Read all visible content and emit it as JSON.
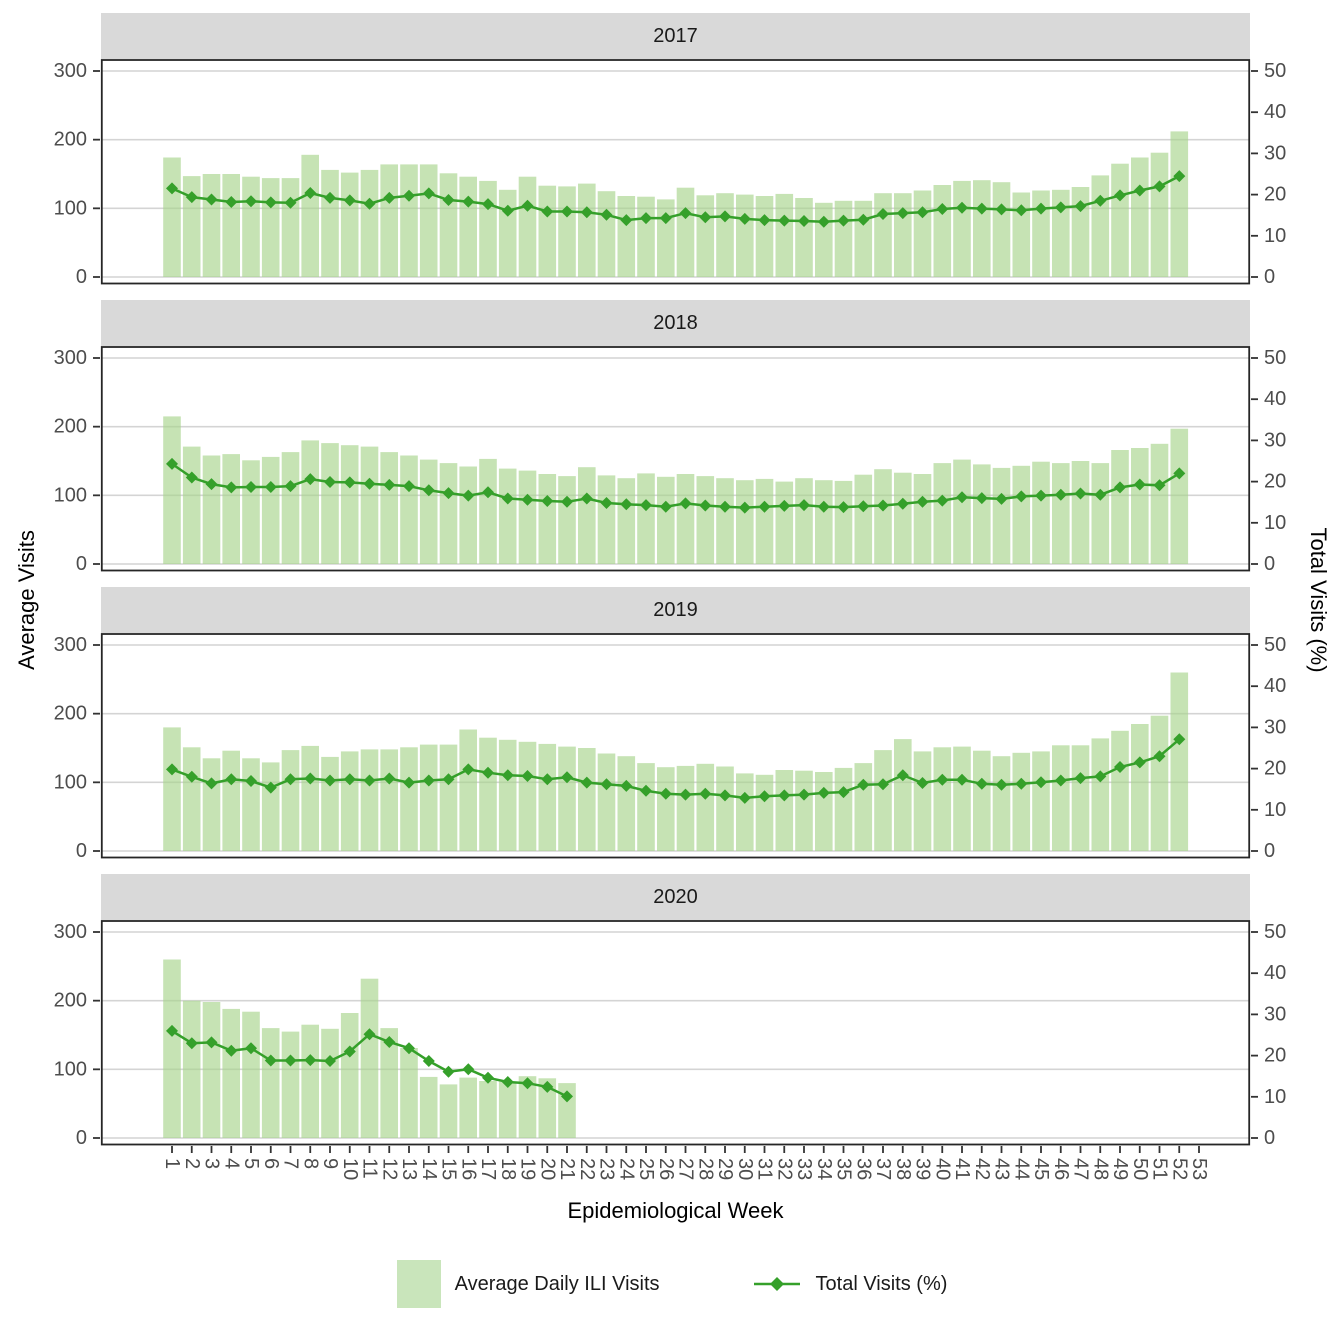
{
  "figure": {
    "xlabel": "Epidemiological Week",
    "ylabel_left": "Average Visits",
    "ylabel_right": "Total Visits (%)",
    "legend": [
      {
        "type": "fill",
        "label": "Average Daily ILI Visits"
      },
      {
        "type": "line-point",
        "label": "Total Visits (%)"
      }
    ]
  },
  "style": {
    "bar_fill_solid": "#c9e5bb",
    "bar_fill_rgba": "rgba(167,212,140,0.65)",
    "line_color": "#35a02a",
    "strip_bg": "#d9d9d9",
    "grid_color": "#d4d4d4",
    "axis_text_color": "#4d4d4d",
    "panel_border": "#262626",
    "tick_color": "#333333"
  },
  "chart_data": {
    "type": "bar",
    "subtype": "bar+line dual-axis, faceted by year (4 rows)",
    "bar_series_name": "Average Daily ILI Visits",
    "line_series_name": "Total Visits (%)",
    "xlabel": "Epidemiological Week",
    "x_ticks": [
      1,
      2,
      3,
      4,
      5,
      6,
      7,
      8,
      9,
      10,
      11,
      12,
      13,
      14,
      15,
      16,
      17,
      18,
      19,
      20,
      21,
      22,
      23,
      24,
      25,
      26,
      27,
      28,
      29,
      30,
      31,
      32,
      33,
      34,
      35,
      36,
      37,
      38,
      39,
      40,
      41,
      42,
      43,
      44,
      45,
      46,
      47,
      48,
      49,
      50,
      51,
      52,
      53
    ],
    "left_axis": {
      "label": "Average Visits",
      "ticks": [
        300,
        200,
        100,
        0
      ],
      "range": [
        0,
        300
      ]
    },
    "right_axis": {
      "label": "Total Visits (%)",
      "ticks": [
        50,
        40,
        30,
        20,
        10,
        0
      ],
      "range": [
        0,
        50
      ]
    },
    "grid": "horizontal major gridlines only",
    "legend_position": "bottom",
    "facets": [
      {
        "year": "2017",
        "bars": [
          174,
          147,
          150,
          150,
          146,
          144,
          144,
          178,
          156,
          152,
          156,
          164,
          164,
          164,
          151,
          146,
          140,
          127,
          146,
          133,
          132,
          136,
          125,
          118,
          117,
          113,
          130,
          119,
          122,
          120,
          118,
          121,
          115,
          108,
          111,
          111,
          122,
          122,
          126,
          134,
          140,
          141,
          138,
          123,
          126,
          127,
          131,
          148,
          165,
          174,
          181,
          212
        ],
        "line": [
          21.5,
          19.4,
          18.8,
          18.2,
          18.4,
          18.1,
          18.0,
          20.4,
          19.2,
          18.6,
          17.8,
          19.2,
          19.7,
          20.3,
          18.7,
          18.3,
          17.7,
          16.1,
          17.3,
          15.9,
          15.9,
          15.7,
          15.1,
          13.8,
          14.3,
          14.3,
          15.5,
          14.5,
          14.7,
          14.1,
          13.8,
          13.7,
          13.6,
          13.4,
          13.7,
          13.9,
          15.3,
          15.5,
          15.7,
          16.5,
          16.8,
          16.6,
          16.4,
          16.2,
          16.6,
          16.9,
          17.2,
          18.5,
          19.8,
          21.0,
          22.0,
          24.5
        ]
      },
      {
        "year": "2018",
        "bars": [
          215,
          171,
          158,
          160,
          151,
          156,
          163,
          180,
          176,
          173,
          171,
          163,
          158,
          152,
          147,
          142,
          153,
          139,
          136,
          131,
          128,
          141,
          129,
          125,
          132,
          127,
          131,
          128,
          125,
          122,
          124,
          120,
          125,
          122,
          121,
          130,
          138,
          133,
          131,
          147,
          152,
          145,
          140,
          143,
          149,
          147,
          150,
          147,
          166,
          169,
          175,
          197
        ],
        "line": [
          24.3,
          21.0,
          19.4,
          18.6,
          18.7,
          18.7,
          18.9,
          20.6,
          19.9,
          19.8,
          19.5,
          19.2,
          18.9,
          17.9,
          17.2,
          16.6,
          17.4,
          15.9,
          15.6,
          15.3,
          15.1,
          15.9,
          14.8,
          14.5,
          14.3,
          13.9,
          14.7,
          14.2,
          13.9,
          13.7,
          13.9,
          14.1,
          14.3,
          13.9,
          13.8,
          14.0,
          14.2,
          14.6,
          15.1,
          15.4,
          16.2,
          16.0,
          15.8,
          16.4,
          16.6,
          16.8,
          17.1,
          16.8,
          18.6,
          19.3,
          19.1,
          22.0
        ]
      },
      {
        "year": "2019",
        "bars": [
          180,
          151,
          135,
          146,
          135,
          129,
          147,
          153,
          137,
          145,
          148,
          148,
          151,
          155,
          155,
          177,
          165,
          162,
          159,
          156,
          152,
          150,
          142,
          138,
          128,
          122,
          124,
          127,
          123,
          113,
          111,
          118,
          117,
          115,
          121,
          128,
          147,
          163,
          145,
          151,
          152,
          146,
          138,
          143,
          145,
          154,
          154,
          164,
          175,
          185,
          197,
          260
        ],
        "line": [
          19.8,
          18.0,
          16.4,
          17.4,
          17.0,
          15.4,
          17.4,
          17.6,
          17.1,
          17.4,
          17.1,
          17.6,
          16.6,
          17.1,
          17.4,
          19.8,
          19.0,
          18.4,
          18.2,
          17.4,
          17.9,
          16.6,
          16.2,
          15.8,
          14.6,
          13.9,
          13.7,
          13.9,
          13.5,
          12.9,
          13.3,
          13.5,
          13.7,
          14.1,
          14.3,
          16.1,
          16.2,
          18.4,
          16.5,
          17.3,
          17.3,
          16.3,
          16.1,
          16.3,
          16.7,
          17.1,
          17.7,
          18.1,
          20.4,
          21.5,
          23.0,
          27.1
        ]
      },
      {
        "year": "2020",
        "bars": [
          260,
          200,
          198,
          188,
          184,
          160,
          155,
          165,
          159,
          182,
          232,
          160,
          131,
          89,
          78,
          88,
          83,
          82,
          90,
          87,
          80
        ],
        "line": [
          26.0,
          23.0,
          23.2,
          21.2,
          21.8,
          18.8,
          18.8,
          18.9,
          18.7,
          21.0,
          25.2,
          23.3,
          21.8,
          18.7,
          16.1,
          16.7,
          14.6,
          13.6,
          13.3,
          12.4,
          10.1
        ]
      }
    ]
  }
}
